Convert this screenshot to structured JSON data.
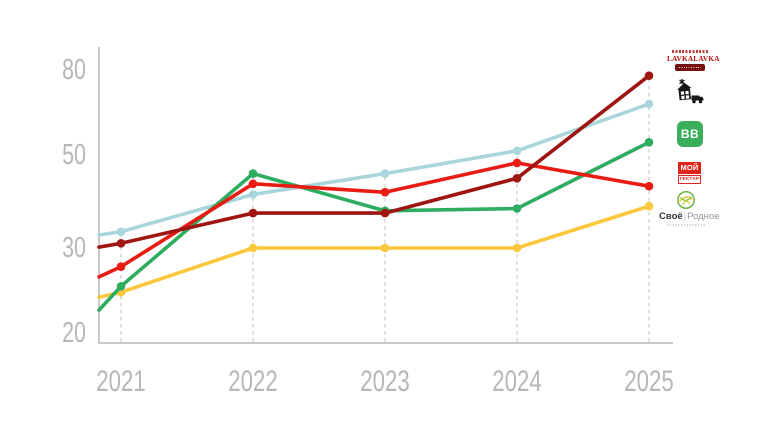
{
  "chart_data": {
    "type": "line",
    "title": "",
    "x_tick_labels": [
      "2021",
      "2022",
      "2023",
      "2024",
      "2025"
    ],
    "x": [
      2021,
      2022,
      2023,
      2024,
      2025
    ],
    "y_tick_labels": [
      "80",
      "50",
      "30",
      "20"
    ],
    "y_ticks": [
      80,
      50,
      30,
      20
    ],
    "y_scale": "log-like (non-linear tick spacing)",
    "grid": "vertical-dashed-per-year",
    "legend_position": "right",
    "series": [
      {
        "name": "LAVKALAVKA",
        "color": "#9e1511",
        "values": [
          31,
          37.5,
          37.5,
          45,
          78
        ],
        "left_edge_value": 30.2
      },
      {
        "name": "Ешь Деревенское (чёрный логотип: дом и грузовик)",
        "color": "#a8d6da",
        "values": [
          33.5,
          41.5,
          46,
          51.5,
          68
        ],
        "left_edge_value": 32.8
      },
      {
        "name": "ВВ (ВкусВилл)",
        "color": "#2ead61",
        "values": [
          25.5,
          46,
          38,
          38.5,
          54.5
        ],
        "left_edge_value": 22.7
      },
      {
        "name": "МОЙ ГЕКТАР",
        "color": "#e81c13",
        "values": [
          27.8,
          43.8,
          42,
          48.3,
          43.3
        ],
        "left_edge_value": 26.6
      },
      {
        "name": "Своё Родное",
        "color": "#fbc73c",
        "values": [
          24.8,
          30,
          30,
          30,
          39
        ],
        "left_edge_value": 24.2
      }
    ]
  },
  "legend": {
    "items": [
      {
        "brand": "LAVKALAVKA",
        "label": "LAVKALAVKA",
        "icon": "lavkalavka-logo"
      },
      {
        "brand": "чёрный логотип (дом и грузовик)",
        "label": "",
        "icon": "house-truck-stamp-icon"
      },
      {
        "brand": "ВкусВилл",
        "label": "ВВ",
        "icon": "vkusvill-bb-badge",
        "badge_color": "#3bae5c"
      },
      {
        "brand": "МОЙ ГЕКТАР",
        "label_top": "МОЙ",
        "label_bottom": "ГЕКТАР",
        "icon": "moy-gektar-badge",
        "badge_color": "#e0251c"
      },
      {
        "brand": "Своё Родное",
        "label_left": "Своё",
        "label_right": "Родное",
        "icon": "svoe-rodnoe-circle-icon"
      }
    ]
  },
  "axes": {
    "spine_color": "#c9c9c9",
    "grid_color": "#d8d8d8",
    "tick_label_color": "#b7b7b7"
  }
}
